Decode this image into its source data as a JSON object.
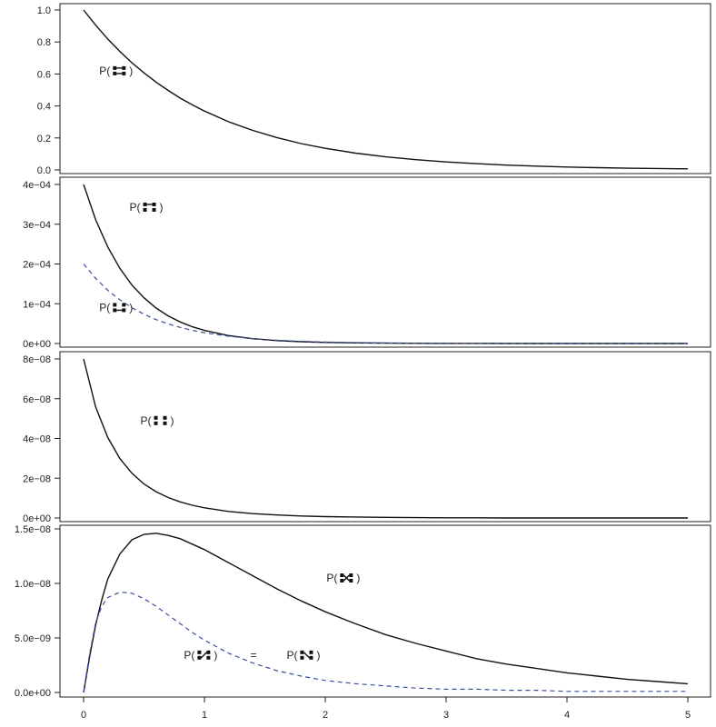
{
  "chart_data": [
    {
      "type": "line",
      "ylim": [
        0,
        1.0
      ],
      "yticks": [
        "0.0",
        "0.2",
        "0.4",
        "0.6",
        "0.8",
        "1.0"
      ],
      "ytick_values": [
        0,
        0.2,
        0.4,
        0.6,
        0.8,
        1.0
      ],
      "series": [
        {
          "style": "solid",
          "color": "#111111",
          "x": [
            0,
            0.1,
            0.2,
            0.3,
            0.4,
            0.5,
            0.6,
            0.7,
            0.8,
            0.9,
            1.0,
            1.2,
            1.4,
            1.6,
            1.8,
            2.0,
            2.25,
            2.5,
            2.75,
            3.0,
            3.25,
            3.5,
            3.75,
            4.0,
            4.25,
            4.5,
            4.75,
            5.0
          ],
          "y": [
            1.0,
            0.905,
            0.819,
            0.741,
            0.67,
            0.607,
            0.549,
            0.497,
            0.449,
            0.407,
            0.368,
            0.301,
            0.247,
            0.202,
            0.165,
            0.135,
            0.105,
            0.082,
            0.064,
            0.05,
            0.039,
            0.03,
            0.024,
            0.018,
            0.014,
            0.011,
            0.009,
            0.007
          ]
        }
      ],
      "annotations": [
        {
          "text_before": "P(",
          "text_after": ")",
          "icon": "dimer-both-bonded-icon",
          "x": 0.13,
          "y": 0.62
        }
      ]
    },
    {
      "type": "line",
      "ylim": [
        0,
        0.0004
      ],
      "yticks": [
        "0e+00",
        "1e−04",
        "2e−04",
        "3e−04",
        "4e−04"
      ],
      "ytick_values": [
        0,
        0.0001,
        0.0002,
        0.0003,
        0.0004
      ],
      "series": [
        {
          "style": "solid",
          "color": "#111111",
          "x": [
            0,
            0.1,
            0.2,
            0.3,
            0.4,
            0.5,
            0.6,
            0.7,
            0.8,
            0.9,
            1.0,
            1.2,
            1.4,
            1.6,
            1.8,
            2.0,
            2.25,
            2.5,
            2.75,
            3.0,
            3.25,
            3.5,
            3.75,
            4.0,
            4.25,
            4.5,
            4.75,
            5.0
          ],
          "y": [
            0.0004,
            0.000311,
            0.000243,
            0.000189,
            0.000147,
            0.000115,
            8.91e-05,
            6.94e-05,
            5.41e-05,
            4.21e-05,
            3.28e-05,
            1.99e-05,
            1.21e-05,
            7.3e-06,
            4.5e-06,
            2.7e-06,
            1.5e-06,
            8e-07,
            5e-07,
            3e-07,
            2e-07,
            1e-07,
            1e-07,
            0.0,
            0.0,
            0.0,
            0.0,
            0.0
          ]
        },
        {
          "style": "dashed",
          "color": "#3b4fa0",
          "x": [
            0,
            0.1,
            0.2,
            0.3,
            0.4,
            0.5,
            0.6,
            0.7,
            0.8,
            0.9,
            1.0,
            1.2,
            1.4,
            1.6,
            1.8,
            2.0,
            2.25,
            2.5,
            2.75,
            3.0,
            3.25,
            3.5,
            3.75,
            4.0,
            4.25,
            4.5,
            4.75,
            5.0
          ],
          "y": [
            0.0002,
            0.000164,
            0.000134,
            0.00011,
            8.99e-05,
            7.36e-05,
            6.02e-05,
            4.93e-05,
            4.04e-05,
            3.31e-05,
            2.71e-05,
            1.82e-05,
            1.22e-05,
            8.2e-06,
            5.5e-06,
            3.7e-06,
            2.2e-06,
            1.3e-06,
            8e-07,
            5e-07,
            3e-07,
            2e-07,
            1e-07,
            1e-07,
            0.0,
            0.0,
            0.0,
            0.0
          ]
        }
      ],
      "annotations": [
        {
          "text_before": "P(",
          "text_after": ")",
          "icon": "dimer-one-bond-top-icon",
          "x": 0.38,
          "y": 0.000343
        },
        {
          "text_before": "P(",
          "text_after": ")",
          "icon": "dimer-one-bond-bottom-icon",
          "x": 0.13,
          "y": 9.05e-05
        }
      ]
    },
    {
      "type": "line",
      "ylim": [
        0,
        8e-08
      ],
      "yticks": [
        "0e+00",
        "2e−08",
        "4e−08",
        "6e−08",
        "8e−08"
      ],
      "ytick_values": [
        0,
        2e-08,
        4e-08,
        6e-08,
        8e-08
      ],
      "series": [
        {
          "style": "solid",
          "color": "#111111",
          "x": [
            0,
            0.1,
            0.2,
            0.3,
            0.4,
            0.5,
            0.6,
            0.7,
            0.8,
            0.9,
            1.0,
            1.2,
            1.4,
            1.6,
            1.8,
            2.0,
            2.25,
            2.5,
            2.75,
            3.0,
            3.25,
            3.5,
            3.75,
            4.0,
            4.25,
            4.5,
            4.75,
            5.0
          ],
          "y": [
            8e-08,
            5.58e-08,
            4.05e-08,
            2.99e-08,
            2.25e-08,
            1.71e-08,
            1.32e-08,
            1.03e-08,
            8.1e-09,
            6.4e-09,
            5.1e-09,
            3.3e-09,
            2.2e-09,
            1.5e-09,
            1e-09,
            7e-10,
            5e-10,
            3e-10,
            2e-10,
            1e-10,
            1e-10,
            0,
            0,
            0,
            0,
            0,
            0,
            0
          ]
        }
      ],
      "annotations": [
        {
          "text_before": "P(",
          "text_after": ")",
          "icon": "dimer-no-bond-icon",
          "x": 0.47,
          "y": 4.9e-08
        }
      ]
    },
    {
      "type": "line",
      "ylim": [
        0,
        1.5e-08
      ],
      "yticks": [
        "0.0e+00",
        "5.0e−09",
        "1.0e−08",
        "1.5e−08"
      ],
      "ytick_values": [
        0,
        5e-09,
        1e-08,
        1.5e-08
      ],
      "xlim": [
        0,
        5
      ],
      "xticks": [
        "0",
        "1",
        "2",
        "3",
        "4",
        "5"
      ],
      "xtick_values": [
        0,
        1,
        2,
        3,
        4,
        5
      ],
      "series": [
        {
          "style": "solid",
          "color": "#111111",
          "x": [
            0,
            0.05,
            0.1,
            0.15,
            0.2,
            0.3,
            0.4,
            0.5,
            0.6,
            0.7,
            0.8,
            0.9,
            1.0,
            1.2,
            1.4,
            1.6,
            1.8,
            2.0,
            2.25,
            2.5,
            2.75,
            3.0,
            3.25,
            3.5,
            3.75,
            4.0,
            4.25,
            4.5,
            4.75,
            5.0
          ],
          "y": [
            0,
            3.3e-09,
            6.2e-09,
            8.5e-09,
            1.04e-08,
            1.27e-08,
            1.4e-08,
            1.45e-08,
            1.46e-08,
            1.44e-08,
            1.41e-08,
            1.36e-08,
            1.31e-08,
            1.19e-08,
            1.07e-08,
            9.5e-09,
            8.4e-09,
            7.4e-09,
            6.3e-09,
            5.3e-09,
            4.5e-09,
            3.8e-09,
            3.1e-09,
            2.6e-09,
            2.2e-09,
            1.8e-09,
            1.5e-09,
            1.2e-09,
            1e-09,
            8e-10
          ]
        },
        {
          "style": "dashed",
          "color": "#3b4fa0",
          "x": [
            0,
            0.05,
            0.1,
            0.15,
            0.2,
            0.3,
            0.4,
            0.5,
            0.6,
            0.7,
            0.8,
            0.9,
            1.0,
            1.2,
            1.4,
            1.6,
            1.8,
            2.0,
            2.25,
            2.5,
            2.75,
            3.0,
            3.25,
            3.5,
            3.75,
            4.0,
            4.25,
            4.5,
            4.75,
            5.0
          ],
          "y": [
            0,
            3.6e-09,
            6.4e-09,
            7.9e-09,
            8.7e-09,
            9.2e-09,
            9.1e-09,
            8.6e-09,
            7.9e-09,
            7.1e-09,
            6.3e-09,
            5.5e-09,
            4.8e-09,
            3.6e-09,
            2.7e-09,
            2e-09,
            1.5e-09,
            1.1e-09,
            8e-10,
            6e-10,
            4e-10,
            3e-10,
            3e-10,
            2e-10,
            2e-10,
            1e-10,
            1e-10,
            1e-10,
            1e-10,
            1e-10
          ]
        }
      ],
      "annotations": [
        {
          "text_before": "P(",
          "text_after": ")",
          "icon": "dimer-crossed-bond-icon",
          "x": 2.01,
          "y": 1.05e-08
        },
        {
          "text_before": "P(",
          "text_after": ")",
          "icon": "dimer-diagonal-up-bond-icon",
          "x": 0.83,
          "y": 3.43e-09
        },
        {
          "text_before": "=",
          "text_after": "",
          "icon": "",
          "x": 1.38,
          "y": 3.43e-09
        },
        {
          "text_before": "P(",
          "text_after": ")",
          "icon": "dimer-diagonal-down-bond-icon",
          "x": 1.68,
          "y": 3.43e-09
        }
      ]
    }
  ]
}
